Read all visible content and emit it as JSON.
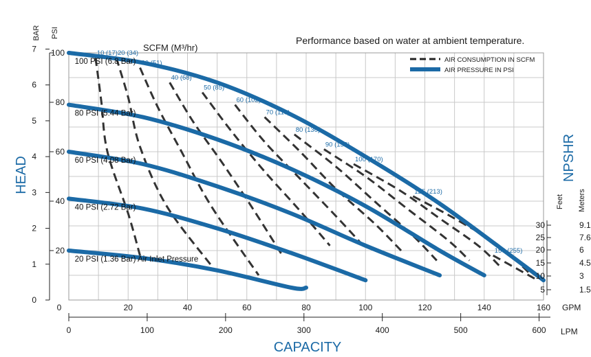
{
  "chart_data": {
    "type": "line",
    "title": "Performance based on water at ambient temperature.",
    "xlabel": "CAPACITY",
    "ylabel": "HEAD",
    "right_label": "NPSHR",
    "scfm_title": "SCFM (M³/hr)",
    "x_gpm": {
      "unit": "GPM",
      "ticks": [
        "0",
        "20",
        "40",
        "60",
        "80",
        "100",
        "120",
        "140",
        "160"
      ],
      "range": [
        0,
        160
      ]
    },
    "x_lpm": {
      "unit": "LPM",
      "ticks": [
        "0",
        "100",
        "200",
        "300",
        "400",
        "500",
        "600"
      ],
      "range": [
        0,
        600
      ]
    },
    "y_psi": {
      "unit": "PSI",
      "ticks": [
        "20",
        "40",
        "60",
        "80",
        "100"
      ],
      "range": [
        0,
        100
      ]
    },
    "y_bar": {
      "unit": "BAR",
      "ticks": [
        "0",
        "1",
        "2",
        "3",
        "4",
        "5",
        "6",
        "7"
      ]
    },
    "npshr": {
      "feet_label": "Feet",
      "meters_label": "Meters",
      "feet": [
        "30",
        "25",
        "20",
        "15",
        "10",
        "5"
      ],
      "meters": [
        "9.1",
        "7.6",
        "6",
        "4.5",
        "3",
        "1.5"
      ]
    },
    "legend": {
      "placement": "top-right",
      "items": [
        {
          "label": "AIR CONSUMPTION IN SCFM",
          "style": "dashed",
          "color": "#222222"
        },
        {
          "label": "AIR PRESSURE IN PSI",
          "style": "solid",
          "color": "#1b6aa6"
        }
      ]
    },
    "series": [
      {
        "name": "100 PSI (6.8 Bar)",
        "x": [
          0,
          25,
          50,
          75,
          100,
          125,
          150,
          160
        ],
        "y": [
          100,
          96,
          88,
          75,
          58,
          39,
          17,
          8
        ]
      },
      {
        "name": "80 PSI (5.44 Bar)",
        "x": [
          0,
          25,
          50,
          75,
          100,
          125,
          140
        ],
        "y": [
          79,
          74,
          65,
          53,
          38,
          20,
          10
        ]
      },
      {
        "name": "60 PSI (4.08 Bar)",
        "x": [
          0,
          25,
          50,
          75,
          100,
          125
        ],
        "y": [
          60,
          55,
          46,
          35,
          22,
          10
        ]
      },
      {
        "name": "40 PSI (2.72 Bar)",
        "x": [
          0,
          25,
          50,
          75,
          100
        ],
        "y": [
          41,
          37,
          29,
          19,
          8
        ]
      },
      {
        "name": "20 PSI (1.36 Bar) Air Inlet Pressure",
        "x": [
          0,
          25,
          50,
          75,
          80
        ],
        "y": [
          20,
          17,
          12,
          5,
          5
        ]
      }
    ],
    "scfm_lines": [
      {
        "label": "10 (17)",
        "x": [
          9,
          11,
          13,
          20,
          24
        ],
        "y": [
          98,
          80,
          60,
          35,
          18
        ]
      },
      {
        "label": "20 (34)",
        "x": [
          16,
          20,
          24,
          33,
          48
        ],
        "y": [
          98,
          82,
          62,
          38,
          14
        ]
      },
      {
        "label": "30 (51)",
        "x": [
          24,
          30,
          38,
          48,
          64
        ],
        "y": [
          94,
          78,
          60,
          38,
          10
        ]
      },
      {
        "label": "40 (68)",
        "x": [
          34,
          42,
          52,
          62,
          72
        ],
        "y": [
          88,
          72,
          55,
          37,
          18
        ]
      },
      {
        "label": "50 (85)",
        "x": [
          45,
          55,
          66,
          78,
          88
        ],
        "y": [
          84,
          68,
          52,
          36,
          22
        ]
      },
      {
        "label": "60 (102)",
        "x": [
          56,
          66,
          78,
          90,
          100
        ],
        "y": [
          79,
          64,
          49,
          34,
          21
        ]
      },
      {
        "label": "70 (119)",
        "x": [
          66,
          78,
          90,
          103,
          112
        ],
        "y": [
          74,
          60,
          45,
          31,
          20
        ]
      },
      {
        "label": "80 (136)",
        "x": [
          76,
          90,
          103,
          116,
          124
        ],
        "y": [
          67,
          54,
          40,
          26,
          16
        ]
      },
      {
        "label": "90 (153)",
        "x": [
          86,
          100,
          114,
          128,
          135
        ],
        "y": [
          61,
          50,
          37,
          24,
          16
        ]
      },
      {
        "label": "100 (170)",
        "x": [
          96,
          112,
          125,
          138,
          145
        ],
        "y": [
          55,
          44,
          33,
          22,
          14
        ]
      },
      {
        "label": "125 (213)",
        "x": [
          116,
          130,
          145,
          156
        ],
        "y": [
          42,
          33,
          22,
          10
        ]
      },
      {
        "label": "150 (255)",
        "x": [
          143,
          152,
          158
        ],
        "y": [
          18,
          12,
          8
        ]
      }
    ],
    "grid": true
  }
}
